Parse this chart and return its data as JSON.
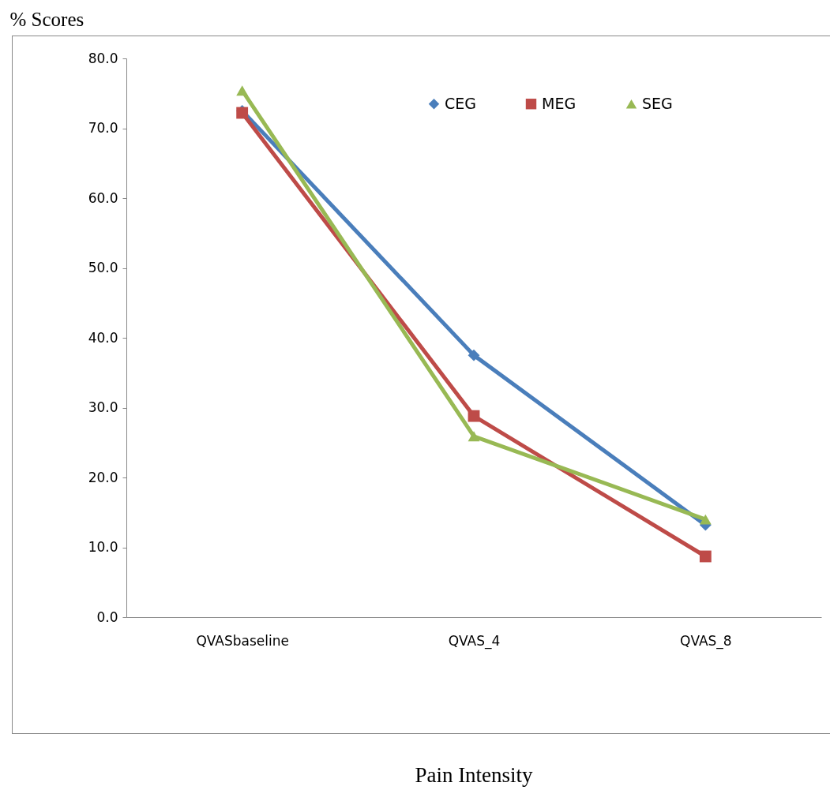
{
  "chart_data": {
    "type": "line",
    "annotations": [
      "Pain Intensity"
    ],
    "ylabel": "% Scores",
    "categories": [
      "QVASbaseline",
      "QVAS_4",
      "QVAS_8"
    ],
    "series": [
      {
        "name": "CEG",
        "color": "#4a7ebb",
        "marker": "diamond",
        "values": [
          72.5,
          37.5,
          13.2
        ]
      },
      {
        "name": "MEG",
        "color": "#be4b48",
        "marker": "square",
        "values": [
          72.2,
          28.8,
          8.7
        ]
      },
      {
        "name": "SEG",
        "color": "#98b954",
        "marker": "triangle",
        "values": [
          75.4,
          25.9,
          14.0
        ]
      }
    ],
    "ylim": [
      0,
      80
    ],
    "yticks": [
      {
        "value": 0,
        "label": "0.0"
      },
      {
        "value": 10,
        "label": "10.0"
      },
      {
        "value": 20,
        "label": "20.0"
      },
      {
        "value": 30,
        "label": "30.0"
      },
      {
        "value": 40,
        "label": "40.0"
      },
      {
        "value": 50,
        "label": "50.0"
      },
      {
        "value": 60,
        "label": "60.0"
      },
      {
        "value": 70,
        "label": "70.0"
      },
      {
        "value": 80,
        "label": "80.0"
      }
    ],
    "grid": false,
    "legend": "top right",
    "line_style": "solid"
  }
}
